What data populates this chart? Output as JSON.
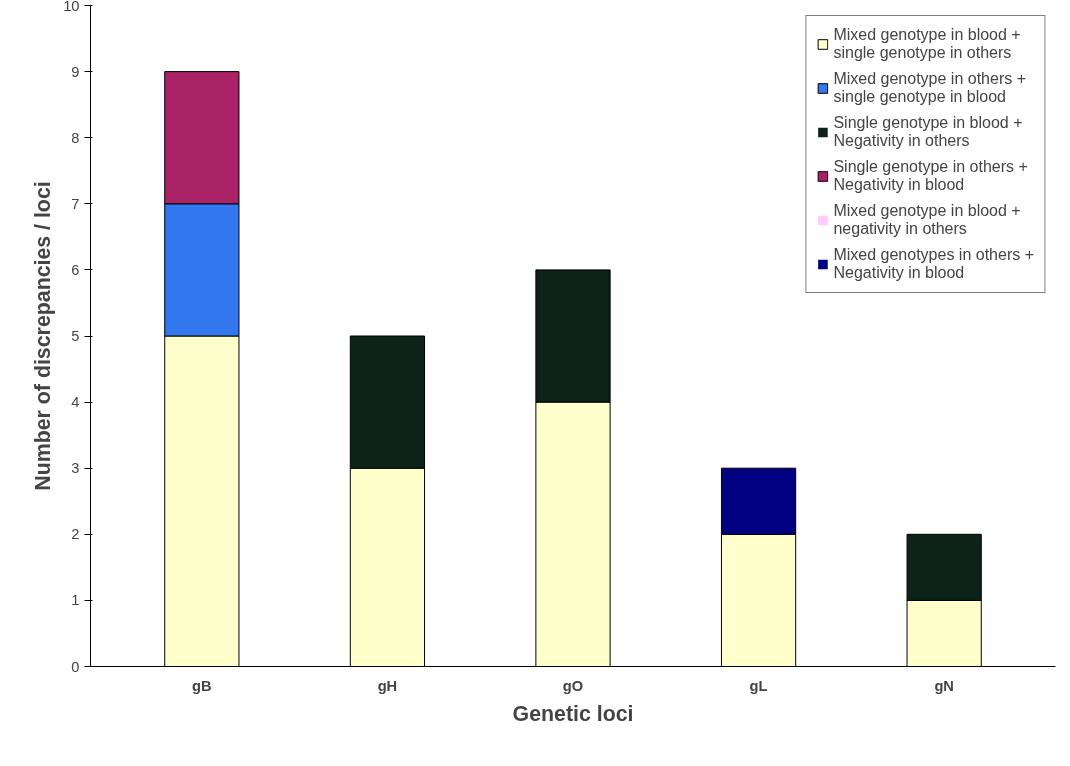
{
  "chart_data": {
    "type": "bar",
    "stacked": true,
    "xlabel": "Genetic loci",
    "ylabel": "Number of discrepancies / loci",
    "categories": [
      "gB",
      "gH",
      "gO",
      "gL",
      "gN"
    ],
    "series": [
      {
        "name": "Mixed genotype in blood + single genotype in others",
        "color": "#ffffcc",
        "values": [
          5,
          3,
          4,
          2,
          1
        ]
      },
      {
        "name": "Mixed genotype in others + single genotype in blood",
        "color": "#3377ee",
        "values": [
          2,
          0,
          0,
          0,
          0
        ]
      },
      {
        "name": "Single genotype in blood + Negativity in others",
        "color": "#0d2218",
        "values": [
          0,
          2,
          2,
          0,
          1
        ]
      },
      {
        "name": "Single genotype in others + Negativity in blood",
        "color": "#aa2266",
        "values": [
          2,
          0,
          0,
          0,
          0
        ]
      },
      {
        "name": "Mixed genotype in blood + negativity in others",
        "color": "#ffccff",
        "values": [
          0,
          0,
          0,
          0,
          0
        ]
      },
      {
        "name": "Mixed genotypes in others + Negativity in blood",
        "color": "#000080",
        "values": [
          0,
          0,
          0,
          1,
          0
        ]
      }
    ],
    "ylim": [
      0,
      10
    ],
    "yticks": [
      0,
      1,
      2,
      3,
      4,
      5,
      6,
      7,
      8,
      9,
      10
    ],
    "grid": false,
    "legend": "top right"
  }
}
